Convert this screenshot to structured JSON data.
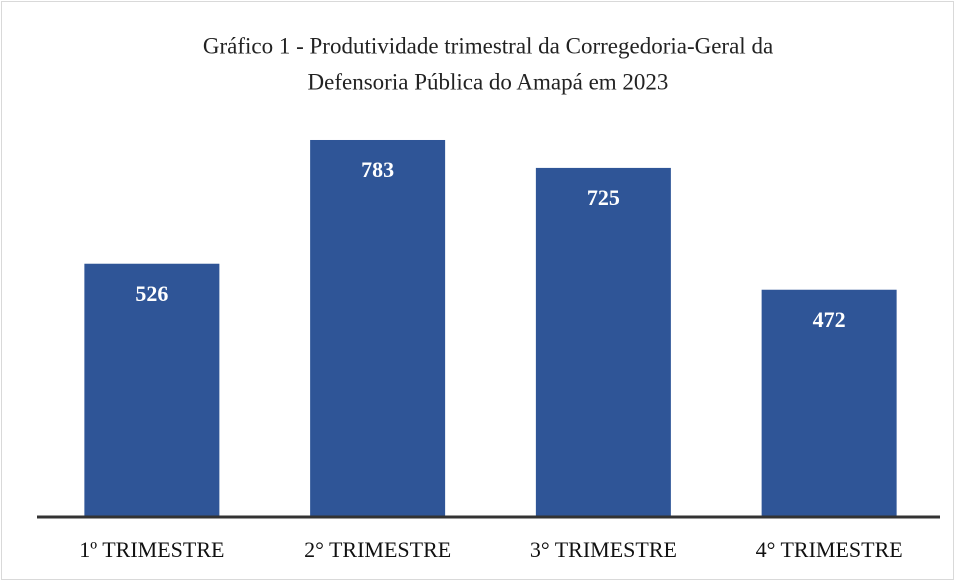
{
  "chart_data": {
    "type": "bar",
    "title": [
      "Gráfico 1 - Produtividade trimestral da Corregedoria-Geral da",
      "Defensoria Pública do Amapá em 2023"
    ],
    "categories": [
      "1º TRIMESTRE",
      "2° TRIMESTRE",
      "3° TRIMESTRE",
      "4° TRIMESTRE"
    ],
    "values": [
      526,
      783,
      725,
      472
    ],
    "color": "#2f5597"
  }
}
